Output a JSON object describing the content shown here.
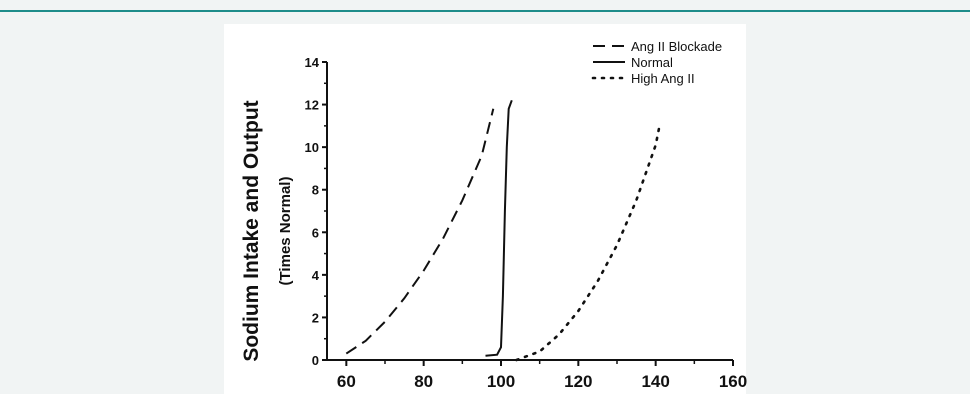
{
  "chart_data": {
    "type": "line",
    "title": "",
    "ylabel": "Sodium Intake and Output",
    "ylabel_sub": "(Times Normal)",
    "xlabel": "",
    "xlim": [
      55,
      160
    ],
    "ylim": [
      0,
      14
    ],
    "x_ticks": [
      60,
      80,
      100,
      120,
      140,
      160
    ],
    "y_ticks": [
      0,
      2,
      4,
      6,
      8,
      10,
      12,
      14
    ],
    "grid": false,
    "legend_position": "top-right",
    "series": [
      {
        "name": "Ang II Blockade",
        "style": "dashed",
        "points": [
          [
            60,
            0.3
          ],
          [
            65,
            0.9
          ],
          [
            70,
            1.8
          ],
          [
            75,
            2.9
          ],
          [
            80,
            4.2
          ],
          [
            85,
            5.7
          ],
          [
            90,
            7.5
          ],
          [
            95,
            9.6
          ],
          [
            98,
            11.8
          ]
        ]
      },
      {
        "name": "Normal",
        "style": "solid",
        "points": [
          [
            96,
            0.2
          ],
          [
            99,
            0.25
          ],
          [
            100,
            0.6
          ],
          [
            100.5,
            3
          ],
          [
            101,
            7
          ],
          [
            101.5,
            10
          ],
          [
            102,
            11.8
          ],
          [
            102.8,
            12.2
          ]
        ]
      },
      {
        "name": "High Ang II",
        "style": "dotted",
        "points": [
          [
            104,
            0.0
          ],
          [
            110,
            0.4
          ],
          [
            115,
            1.2
          ],
          [
            120,
            2.3
          ],
          [
            125,
            3.7
          ],
          [
            130,
            5.4
          ],
          [
            135,
            7.5
          ],
          [
            140,
            10.1
          ],
          [
            141,
            11.0
          ]
        ]
      }
    ]
  },
  "colors": {
    "line": "#111111",
    "accent": "#1e8c8a",
    "background": "#f1f4f4"
  }
}
